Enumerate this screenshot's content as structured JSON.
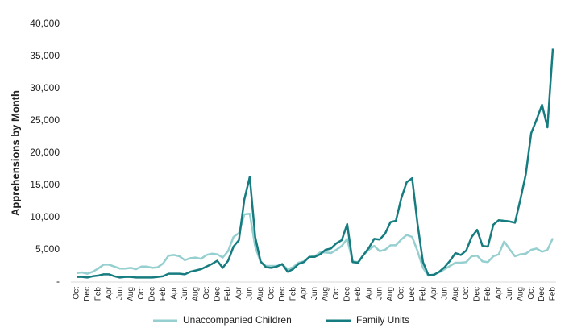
{
  "chart_data": {
    "type": "line",
    "ylabel": "Apprehensions by Month",
    "categories": [
      "Oct",
      null,
      "Dec",
      null,
      "Feb",
      null,
      "Apr",
      null,
      "Jun",
      null,
      "Aug",
      null,
      "Oct",
      null,
      "Dec",
      null,
      "Feb",
      null,
      "Apr",
      null,
      "Jun",
      null,
      "Aug",
      null,
      "Oct",
      null,
      "Dec",
      null,
      "Feb",
      null,
      "Apr",
      null,
      "Jun",
      null,
      "Aug",
      null,
      "Oct",
      null,
      "Dec",
      null,
      "Feb",
      null,
      "Apr",
      null,
      "Jun",
      null,
      "Aug",
      null,
      "Oct",
      null,
      "Dec",
      null,
      "Feb",
      null,
      "Apr",
      null,
      "Jun",
      null,
      "Aug",
      null,
      "Oct",
      null,
      "Dec",
      null,
      "Feb",
      null,
      "Apr",
      null,
      "Jun",
      null,
      "Aug",
      null,
      "Oct",
      null,
      "Dec",
      null,
      "Feb",
      null,
      "Apr",
      null,
      "Jun",
      null,
      "Aug",
      null,
      "Oct",
      null,
      "Dec",
      null,
      "Feb"
    ],
    "series": [
      {
        "name": "Unaccompanied Children",
        "color": "#96cfcf",
        "values": [
          1400,
          1500,
          1300,
          1600,
          2100,
          2700,
          2700,
          2400,
          2100,
          2100,
          2200,
          2000,
          2400,
          2400,
          2200,
          2300,
          2900,
          4100,
          4200,
          4000,
          3400,
          3700,
          3800,
          3600,
          4200,
          4400,
          4300,
          3800,
          4800,
          7000,
          7600,
          10500,
          10600,
          5500,
          3100,
          2500,
          2500,
          2500,
          2700,
          2000,
          2300,
          3000,
          3200,
          3900,
          4000,
          4600,
          4600,
          4500,
          5000,
          5600,
          6700,
          3200,
          3100,
          4200,
          5000,
          5600,
          4800,
          5000,
          5700,
          5700,
          6600,
          7300,
          7000,
          4800,
          2200,
          1000,
          1200,
          1500,
          2000,
          2500,
          3000,
          3000,
          3100,
          4000,
          4100,
          3200,
          3100,
          4000,
          4300,
          6300,
          5100,
          4000,
          4300,
          4400,
          5000,
          5200,
          4700,
          5000,
          6800
        ]
      },
      {
        "name": "Family Units",
        "color": "#167c80",
        "values": [
          800,
          800,
          700,
          900,
          1000,
          1200,
          1200,
          900,
          700,
          800,
          800,
          700,
          700,
          700,
          700,
          800,
          900,
          1300,
          1300,
          1300,
          1200,
          1600,
          1800,
          2000,
          2400,
          2800,
          3300,
          2200,
          3300,
          5500,
          6500,
          12800,
          16300,
          7000,
          3200,
          2300,
          2200,
          2400,
          2800,
          1600,
          2000,
          2800,
          3100,
          3900,
          3900,
          4300,
          5000,
          5200,
          6000,
          6500,
          9000,
          3100,
          3000,
          4200,
          5300,
          6700,
          6600,
          7500,
          9300,
          9500,
          13000,
          15500,
          16100,
          9000,
          3100,
          1100,
          1100,
          1600,
          2300,
          3300,
          4500,
          4200,
          4900,
          7000,
          8100,
          5600,
          5500,
          8900,
          9600,
          9500,
          9400,
          9200,
          12800,
          16700,
          23100,
          25200,
          27500,
          24000,
          36200
        ]
      }
    ],
    "ylim": [
      0,
      40000
    ],
    "yticks": [
      {
        "value": 0,
        "label": "-"
      },
      {
        "value": 5000,
        "label": "5,000"
      },
      {
        "value": 10000,
        "label": "10,000"
      },
      {
        "value": 15000,
        "label": "15,000"
      },
      {
        "value": 20000,
        "label": "20,000"
      },
      {
        "value": 25000,
        "label": "25,000"
      },
      {
        "value": 30000,
        "label": "30,000"
      },
      {
        "value": 35000,
        "label": "35,000"
      },
      {
        "value": 40000,
        "label": "40,000"
      }
    ],
    "grid": false,
    "legend": "bottom"
  }
}
